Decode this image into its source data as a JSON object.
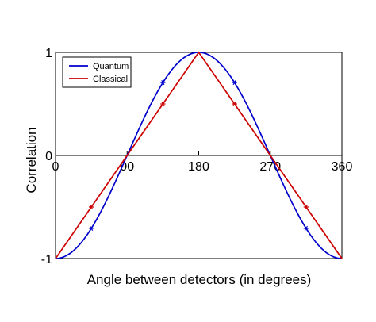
{
  "chart_data": {
    "type": "line",
    "xlabel": "Angle between detectors (in degrees)",
    "ylabel": "Correlation",
    "xlim": [
      0,
      360
    ],
    "ylim": [
      -1,
      1
    ],
    "x_ticks": [
      "0",
      "90",
      "180",
      "270",
      "360"
    ],
    "y_ticks": [
      "-1",
      "0",
      "1"
    ],
    "grid": false,
    "legend_position": "top-left",
    "series": [
      {
        "name": "Quantum",
        "color": "#0000cc",
        "formula": "-cos(angle)",
        "markers": [
          {
            "x": 45,
            "y": -0.707
          },
          {
            "x": 135,
            "y": 0.707
          },
          {
            "x": 225,
            "y": 0.707
          },
          {
            "x": 315,
            "y": -0.707
          }
        ]
      },
      {
        "name": "Classical",
        "color": "#cc0000",
        "x": [
          0,
          180,
          360
        ],
        "y": [
          -1,
          1,
          -1
        ],
        "markers": [
          {
            "x": 45,
            "y": -0.5
          },
          {
            "x": 135,
            "y": 0.5
          },
          {
            "x": 225,
            "y": 0.5
          },
          {
            "x": 315,
            "y": -0.5
          }
        ]
      }
    ]
  }
}
